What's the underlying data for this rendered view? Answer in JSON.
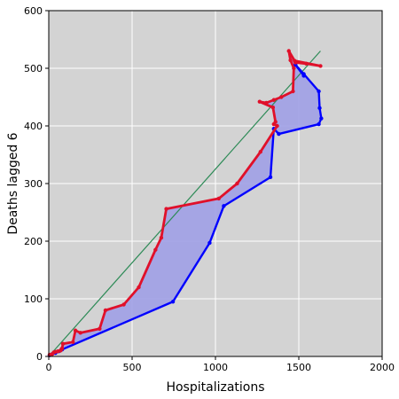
{
  "chart_data": {
    "type": "line",
    "title": "",
    "xlabel": "Hospitalizations",
    "ylabel": "Deaths lagged 6",
    "xlim": [
      0,
      2000
    ],
    "ylim": [
      0,
      600
    ],
    "xticks": [
      0,
      500,
      1000,
      1500,
      2000
    ],
    "yticks": [
      0,
      100,
      200,
      300,
      400,
      500,
      600
    ],
    "grid": true,
    "legend": "none",
    "colors": {
      "background": "#d3d3d3",
      "grid": "#ffffff",
      "fill": "#a0a0e6",
      "series_blue": "#0000ff",
      "series_red": "#e0102a",
      "trend": "#2e8b57"
    },
    "trend_line": {
      "x": [
        0,
        1630
      ],
      "y": [
        0,
        530
      ]
    },
    "series": [
      {
        "color": "#0000ff",
        "x": [
          5,
          20,
          40,
          60,
          80,
          745,
          965,
          1050,
          1330,
          1350,
          1380,
          1620,
          1635,
          1625,
          1620,
          1530,
          1480,
          1530
        ],
        "y": [
          2,
          4,
          6,
          9,
          12,
          95,
          197,
          261,
          311,
          395,
          386,
          403,
          413,
          431,
          460,
          490,
          506,
          487
        ]
      },
      {
        "color": "#e0102a",
        "x": [
          5,
          20,
          30,
          40,
          55,
          70,
          75,
          80,
          85,
          145,
          160,
          190,
          305,
          340,
          450,
          540,
          640,
          675,
          705,
          1020,
          1130,
          1270,
          1370,
          1350,
          1360,
          1345,
          1265,
          1305,
          1350,
          1395,
          1465,
          1470,
          1450,
          1440,
          1475,
          1630,
          1545,
          1480
        ],
        "y": [
          3,
          4,
          7,
          8,
          9,
          10,
          12,
          14,
          22,
          25,
          45,
          41,
          48,
          80,
          90,
          120,
          185,
          206,
          256,
          274,
          300,
          355,
          400,
          403,
          407,
          432,
          442,
          440,
          445,
          450,
          460,
          500,
          514,
          530,
          513,
          504,
          508,
          510
        ]
      }
    ]
  }
}
